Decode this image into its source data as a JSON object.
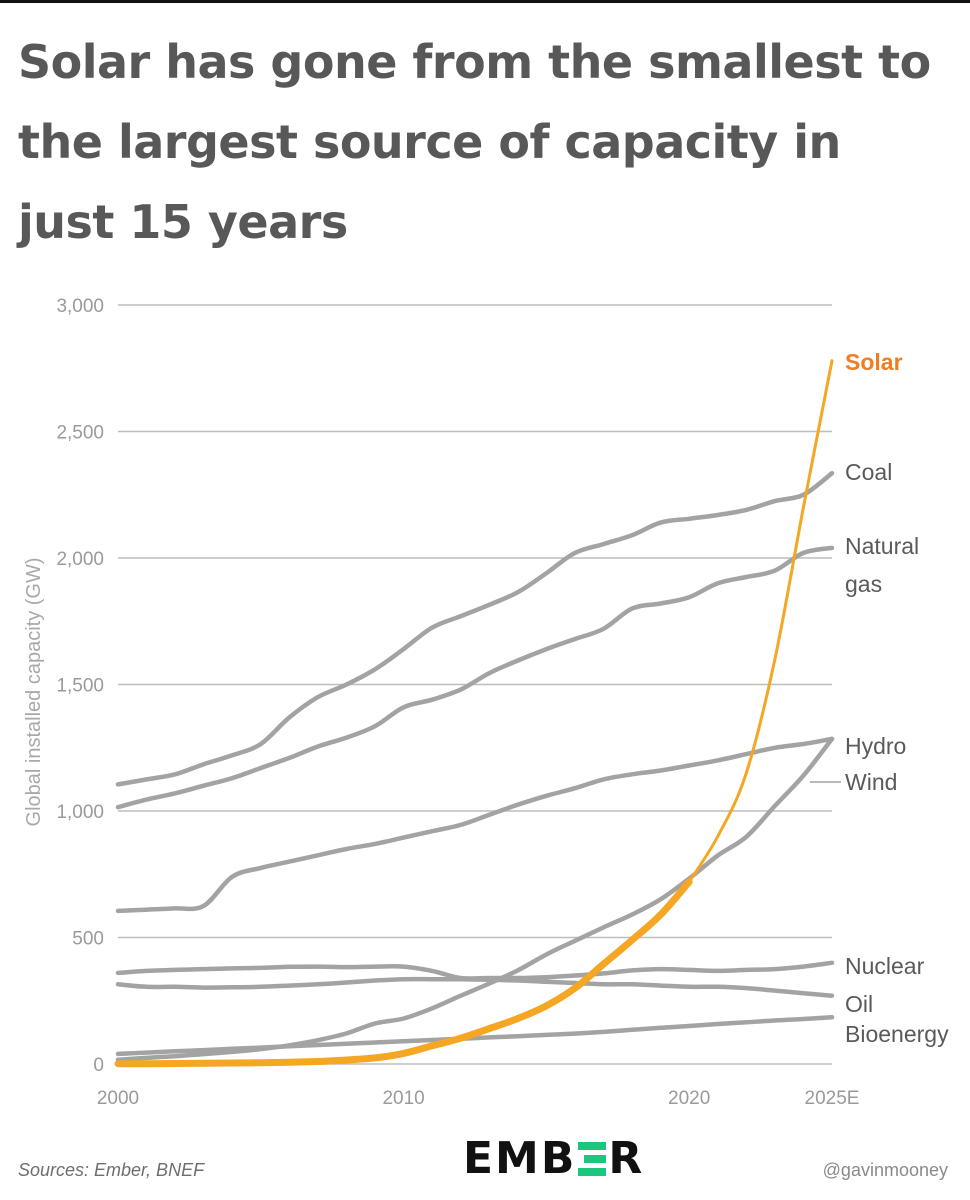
{
  "title_lines": [
    "Solar has gone from the smallest to",
    "the largest source of capacity in",
    "just 15 years"
  ],
  "footer": {
    "source": "Sources: Ember, BNEF",
    "handle": "@gavinmooney",
    "logo_left": "EMB",
    "logo_right": "R",
    "logo_word": "EMBER"
  },
  "colors": {
    "solar": "#f5a623",
    "solar_label": "#ef7d22",
    "other": "#a3a3a3",
    "grid": "#bdbdbd",
    "axis_text": "#9a9a9a",
    "label_text": "#5a5a5a",
    "logo_accent": "#1bc67d"
  },
  "chart_data": {
    "type": "line",
    "title": "Solar has gone from the smallest to the largest source of capacity in just 15 years",
    "ylabel": "Global installed capacity (GW)",
    "xlabel": "",
    "xlim": [
      2000,
      2025
    ],
    "ylim": [
      0,
      3000
    ],
    "yticks": [
      0,
      500,
      1000,
      1500,
      2000,
      2500,
      3000
    ],
    "ytick_labels": [
      "0",
      "500",
      "1,000",
      "1,500",
      "2,000",
      "2,500",
      "3,000"
    ],
    "xticks": [
      2000,
      2010,
      2020,
      2025
    ],
    "xtick_labels": [
      "2000",
      "2010",
      "2020",
      "2025E"
    ],
    "grid": true,
    "series": [
      {
        "name": "Coal",
        "label_lines": [
          "Coal"
        ],
        "highlight": false,
        "x": [
          2000,
          2001,
          2002,
          2003,
          2004,
          2005,
          2006,
          2007,
          2008,
          2009,
          2010,
          2011,
          2012,
          2013,
          2014,
          2015,
          2016,
          2017,
          2018,
          2019,
          2020,
          2021,
          2022,
          2023,
          2024,
          2025
        ],
        "y": [
          1105,
          1125,
          1145,
          1185,
          1220,
          1265,
          1370,
          1450,
          1500,
          1560,
          1640,
          1725,
          1770,
          1815,
          1865,
          1940,
          2020,
          2055,
          2090,
          2140,
          2155,
          2170,
          2190,
          2225,
          2250,
          2335
        ]
      },
      {
        "name": "Natural gas",
        "label_lines": [
          "Natural",
          "gas"
        ],
        "highlight": false,
        "x": [
          2000,
          2001,
          2002,
          2003,
          2004,
          2005,
          2006,
          2007,
          2008,
          2009,
          2010,
          2011,
          2012,
          2013,
          2014,
          2015,
          2016,
          2017,
          2018,
          2019,
          2020,
          2021,
          2022,
          2023,
          2024,
          2025
        ],
        "y": [
          1015,
          1045,
          1070,
          1100,
          1130,
          1170,
          1210,
          1255,
          1290,
          1335,
          1410,
          1440,
          1480,
          1545,
          1595,
          1640,
          1680,
          1720,
          1800,
          1820,
          1845,
          1900,
          1925,
          1950,
          2020,
          2040
        ]
      },
      {
        "name": "Hydro",
        "label_lines": [
          "Hydro"
        ],
        "highlight": false,
        "x": [
          2000,
          2001,
          2002,
          2003,
          2004,
          2005,
          2006,
          2007,
          2008,
          2009,
          2010,
          2011,
          2012,
          2013,
          2014,
          2015,
          2016,
          2017,
          2018,
          2019,
          2020,
          2021,
          2022,
          2023,
          2024,
          2025
        ],
        "y": [
          605,
          610,
          615,
          625,
          740,
          775,
          800,
          825,
          850,
          870,
          895,
          920,
          945,
          985,
          1025,
          1060,
          1090,
          1125,
          1145,
          1160,
          1180,
          1200,
          1225,
          1250,
          1265,
          1285
        ]
      },
      {
        "name": "Wind",
        "label_lines": [
          "Wind"
        ],
        "highlight": false,
        "x": [
          2000,
          2001,
          2002,
          2003,
          2004,
          2005,
          2006,
          2007,
          2008,
          2009,
          2010,
          2011,
          2012,
          2013,
          2014,
          2015,
          2016,
          2017,
          2018,
          2019,
          2020,
          2021,
          2022,
          2023,
          2024,
          2025
        ],
        "y": [
          17,
          24,
          31,
          39,
          48,
          59,
          74,
          94,
          121,
          160,
          180,
          220,
          270,
          318,
          370,
          433,
          487,
          540,
          591,
          651,
          733,
          824,
          898,
          1020,
          1140,
          1285
        ]
      },
      {
        "name": "Nuclear",
        "label_lines": [
          "Nuclear"
        ],
        "highlight": false,
        "x": [
          2000,
          2001,
          2002,
          2003,
          2004,
          2005,
          2006,
          2007,
          2008,
          2009,
          2010,
          2011,
          2012,
          2013,
          2014,
          2015,
          2016,
          2017,
          2018,
          2019,
          2020,
          2021,
          2022,
          2023,
          2024,
          2025
        ],
        "y": [
          360,
          368,
          372,
          375,
          378,
          380,
          384,
          385,
          383,
          385,
          385,
          368,
          340,
          340,
          340,
          343,
          350,
          358,
          370,
          375,
          372,
          368,
          372,
          375,
          385,
          400
        ]
      },
      {
        "name": "Oil",
        "label_lines": [
          "Oil"
        ],
        "highlight": false,
        "x": [
          2000,
          2001,
          2002,
          2003,
          2004,
          2005,
          2006,
          2007,
          2008,
          2009,
          2010,
          2011,
          2012,
          2013,
          2014,
          2015,
          2016,
          2017,
          2018,
          2019,
          2020,
          2021,
          2022,
          2023,
          2024,
          2025
        ],
        "y": [
          315,
          305,
          305,
          302,
          303,
          305,
          310,
          315,
          322,
          330,
          335,
          335,
          335,
          333,
          330,
          325,
          320,
          315,
          315,
          310,
          305,
          305,
          300,
          290,
          280,
          270
        ]
      },
      {
        "name": "Bioenergy",
        "label_lines": [
          "Bioenergy"
        ],
        "highlight": false,
        "x": [
          2000,
          2001,
          2002,
          2003,
          2004,
          2005,
          2006,
          2007,
          2008,
          2009,
          2010,
          2011,
          2012,
          2013,
          2014,
          2015,
          2016,
          2017,
          2018,
          2019,
          2020,
          2021,
          2022,
          2023,
          2024,
          2025
        ],
        "y": [
          40,
          45,
          50,
          55,
          60,
          65,
          70,
          75,
          80,
          85,
          90,
          95,
          100,
          105,
          110,
          115,
          120,
          127,
          135,
          143,
          150,
          158,
          165,
          172,
          178,
          185
        ]
      },
      {
        "name": "Solar",
        "label_lines": [
          "Solar"
        ],
        "highlight": true,
        "x": [
          2000,
          2001,
          2002,
          2003,
          2004,
          2005,
          2006,
          2007,
          2008,
          2009,
          2010,
          2011,
          2012,
          2013,
          2014,
          2015,
          2016,
          2017,
          2018,
          2019,
          2020,
          2021,
          2022,
          2023,
          2024,
          2025
        ],
        "y": [
          1,
          1,
          2,
          3,
          4,
          5,
          7,
          10,
          16,
          24,
          42,
          72,
          102,
          140,
          180,
          230,
          300,
          395,
          490,
          590,
          720,
          900,
          1150,
          1600,
          2200,
          2780
        ]
      }
    ]
  }
}
